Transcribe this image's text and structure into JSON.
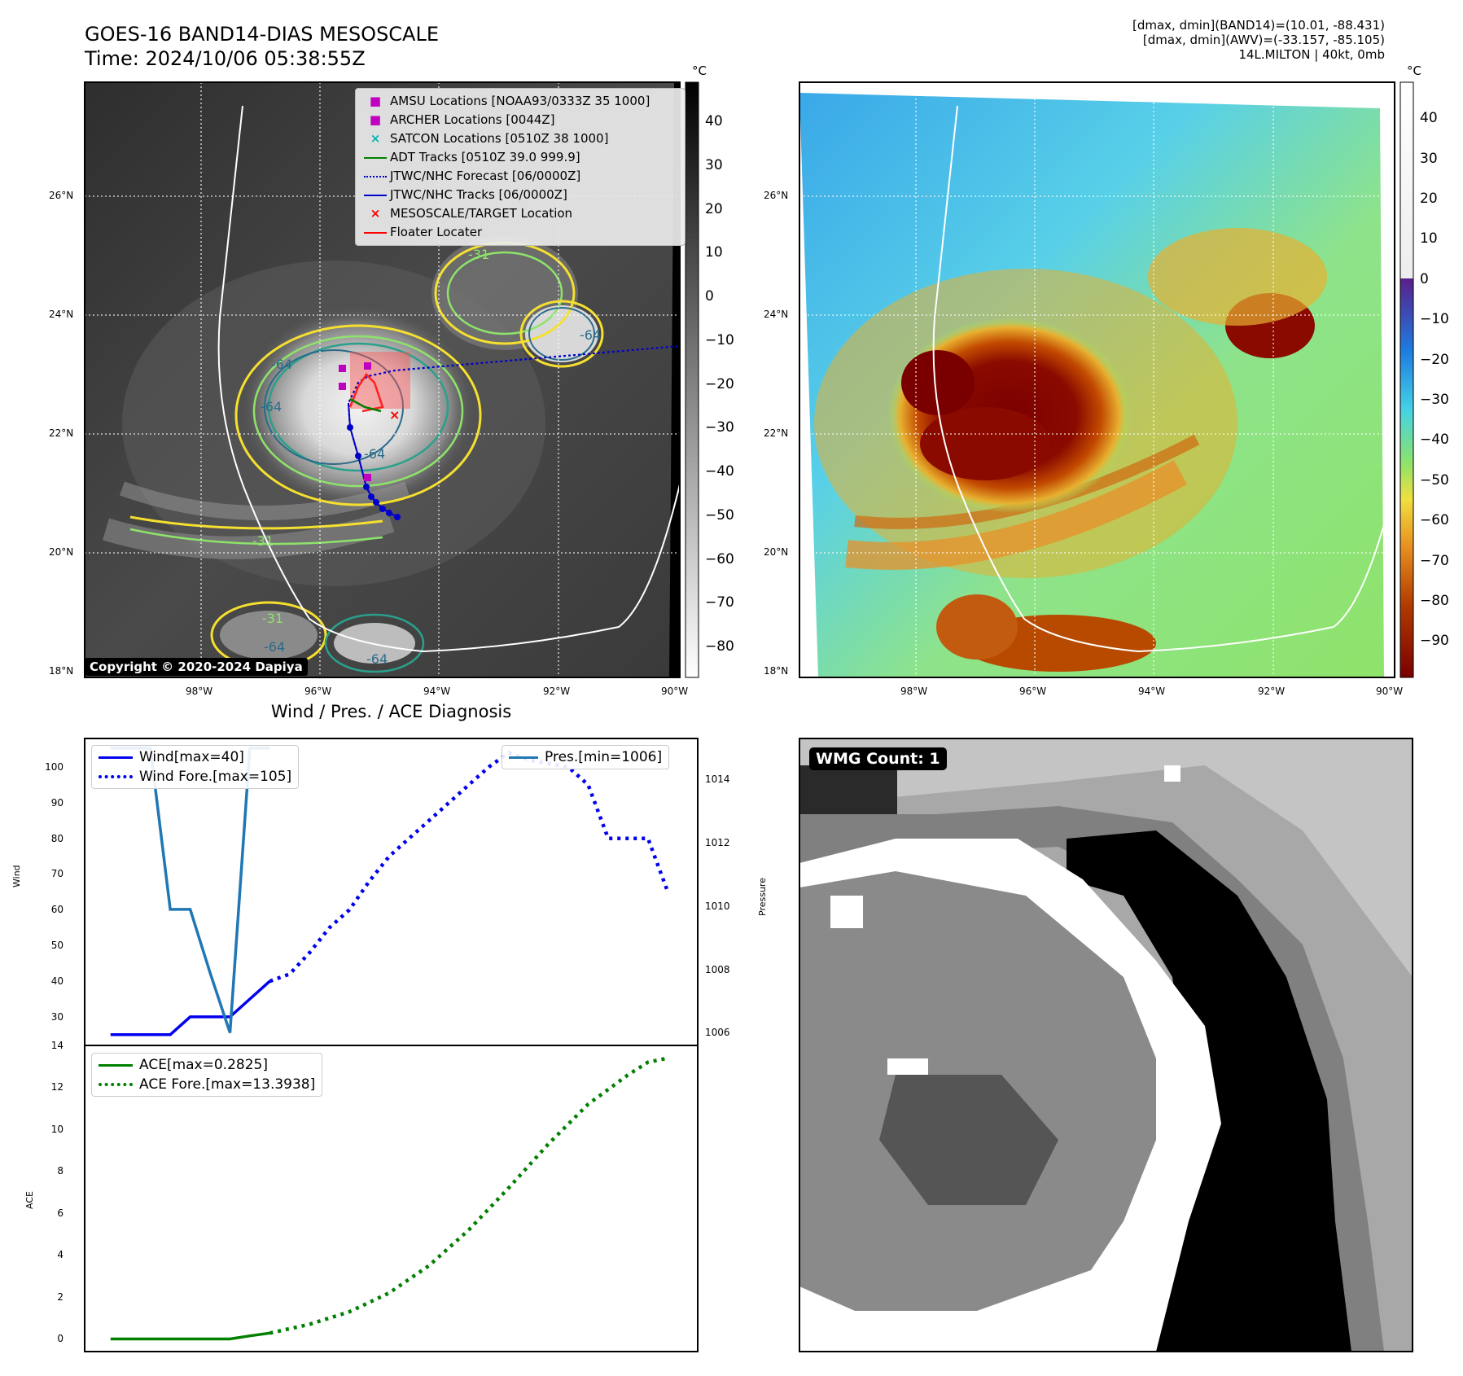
{
  "header": {
    "title_line1": "GOES-16 BAND14-DIAS MESOSCALE",
    "title_line2": "Time: 2024/10/06 05:38:55Z",
    "info_line1": "[dmax, dmin](BAND14)=(10.01, -88.431)",
    "info_line2": "[dmax, dmin](AWV)=(-33.157, -85.105)",
    "info_line3": "14L.MILTON | 40kt, 0mb"
  },
  "map": {
    "lat_labels": [
      "26°N",
      "24°N",
      "22°N",
      "20°N",
      "18°N"
    ],
    "lon_labels": [
      "98°W",
      "96°W",
      "94°W",
      "92°W",
      "90°W"
    ],
    "unit": "°C",
    "copyright": "Copyright © 2020-2024 Dapiya",
    "legend": [
      {
        "label": "AMSU Locations [NOAA93/0333Z 35 1000]",
        "color": "#c000c0"
      },
      {
        "label": "ARCHER Locations [0044Z]",
        "color": "#c000c0"
      },
      {
        "label": "SATCON Locations [0510Z 38 1000]",
        "color": "#00b5b5"
      },
      {
        "label": "ADT Tracks [0510Z 39.0 999.9]",
        "color": "#008000"
      },
      {
        "label": "JTWC/NHC Forecast [06/0000Z]",
        "color": "#0000cc"
      },
      {
        "label": "JTWC/NHC Tracks [06/0000Z]",
        "color": "#0000cc"
      },
      {
        "label": "MESOSCALE/TARGET Location",
        "color": "#ff0000"
      },
      {
        "label": "Floater Locater",
        "color": "#ff0000"
      }
    ],
    "contour_labels": [
      "-64",
      "-64",
      "-64",
      "-31",
      "-31",
      "-64",
      "-64",
      "-31",
      "-64"
    ],
    "gray_colorbar_ticks": [
      "40",
      "30",
      "20",
      "10",
      "0",
      "−10",
      "−20",
      "−30",
      "−40",
      "−50",
      "−60",
      "−70",
      "−80"
    ],
    "color_colorbar_ticks": [
      "40",
      "30",
      "20",
      "10",
      "0",
      "−10",
      "−20",
      "−30",
      "−40",
      "−50",
      "−60",
      "−70",
      "−80",
      "−90"
    ]
  },
  "chart_data": [
    {
      "type": "line",
      "title": "Wind / Pres. / ACE Diagnosis",
      "ylabel": "Wind",
      "y2label": "Pressure",
      "ylim": [
        22,
        108
      ],
      "y2lim": [
        1005.6,
        1015.3
      ],
      "yticks": [
        "30",
        "40",
        "50",
        "60",
        "70",
        "80",
        "90",
        "100"
      ],
      "y2ticks": [
        "1006",
        "1008",
        "1010",
        "1012",
        "1014"
      ],
      "series": [
        {
          "name": "Wind[max=40]",
          "style": "solid",
          "color": "#0000ee",
          "x": [
            0,
            1,
            2,
            3,
            4,
            5,
            6,
            7,
            8
          ],
          "values": [
            25,
            25,
            25,
            25,
            30,
            30,
            30,
            35,
            40
          ]
        },
        {
          "name": "Wind Fore.[max=105]",
          "style": "dotted",
          "color": "#0000ee",
          "x": [
            8,
            9,
            10,
            11,
            12,
            13,
            14,
            15,
            16,
            17,
            18,
            19,
            20,
            21,
            22,
            23,
            24,
            25,
            26,
            27,
            28
          ],
          "values": [
            40,
            42,
            48,
            55,
            60,
            68,
            75,
            80,
            85,
            90,
            95,
            100,
            104,
            102,
            101,
            100,
            95,
            80,
            80,
            80,
            65
          ]
        },
        {
          "name": "Pres.[min=1006]",
          "axis": "right",
          "style": "solid",
          "color": "#1f77b4",
          "x": [
            0,
            1,
            2,
            3,
            4,
            5,
            6,
            7,
            8
          ],
          "values": [
            1015,
            1015,
            1015,
            1009.9,
            1009.9,
            1007.9,
            1006,
            1015,
            1015
          ]
        }
      ]
    },
    {
      "type": "line",
      "ylabel": "ACE",
      "ylim": [
        -0.6,
        14.0
      ],
      "yticks": [
        "0",
        "2",
        "4",
        "6",
        "8",
        "10",
        "12",
        "14"
      ],
      "series": [
        {
          "name": "ACE[max=0.2825]",
          "style": "solid",
          "color": "#008000",
          "x": [
            0,
            1,
            2,
            3,
            4,
            5,
            6,
            7,
            8
          ],
          "values": [
            0,
            0,
            0,
            0,
            0,
            0,
            0,
            0.15,
            0.2825
          ]
        },
        {
          "name": "ACE Fore.[max=13.3938]",
          "style": "dotted",
          "color": "#008000",
          "x": [
            8,
            10,
            12,
            14,
            16,
            18,
            20,
            22,
            24,
            26,
            27,
            28
          ],
          "values": [
            0.2825,
            0.7,
            1.3,
            2.2,
            3.5,
            5.2,
            7.2,
            9.3,
            11.2,
            12.6,
            13.2,
            13.3938
          ]
        }
      ]
    }
  ],
  "wmg": {
    "label": "WMG Count: 1"
  }
}
